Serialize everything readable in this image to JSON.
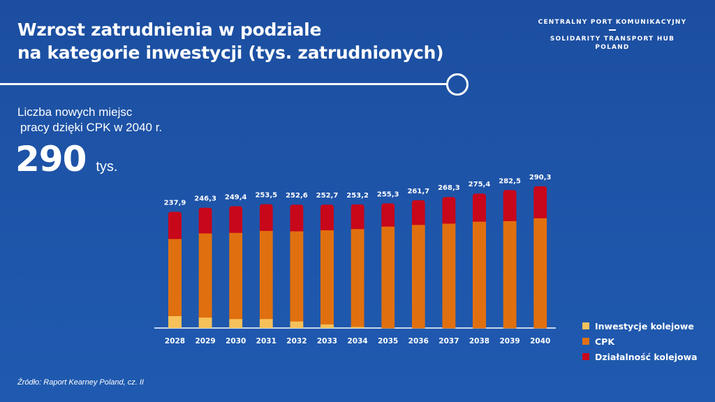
{
  "header": {
    "title_line1": "Wzrost zatrudnienia w podziale",
    "title_line2": "na kategorie inwestycji (tys. zatrudnionych)"
  },
  "logo": {
    "line1": "CENTRALNY PORT KOMUNIKACYJNY",
    "line2": "SOLIDARITY TRANSPORT HUB",
    "line3": "POLAND"
  },
  "kpi": {
    "label_line1": "Liczba nowych miejsc",
    "label_line2": "pracy dzięki CPK w 2040 r.",
    "value": "290",
    "unit": "tys."
  },
  "source": "Źródło: Raport Kearney Poland, cz. II",
  "colors": {
    "inwestycje": "#f6c15a",
    "cpk": "#e0700f",
    "dzialalnosc": "#c8071a"
  },
  "chart_data": {
    "type": "bar",
    "stacked": true,
    "categories": [
      "2028",
      "2029",
      "2030",
      "2031",
      "2032",
      "2033",
      "2034",
      "2035",
      "2036",
      "2037",
      "2038",
      "2039",
      "2040"
    ],
    "totals": [
      237.9,
      246.3,
      249.4,
      253.5,
      252.6,
      252.7,
      253.2,
      255.3,
      261.7,
      268.3,
      275.4,
      282.5,
      290.3
    ],
    "total_labels": [
      "237,9",
      "246,3",
      "249,4",
      "253,5",
      "252,6",
      "252,7",
      "253,2",
      "255,3",
      "261,7",
      "268,3",
      "275,4",
      "282,5",
      "290,3"
    ],
    "series": [
      {
        "name": "Inwestycje kolejowe",
        "color": "#f6c15a",
        "values": [
          25,
          22,
          19,
          19,
          14,
          8,
          3,
          0,
          0,
          0,
          0,
          0,
          0
        ]
      },
      {
        "name": "CPK",
        "color": "#e0700f",
        "values": [
          157.9,
          172.3,
          176.4,
          180.5,
          184.6,
          192.7,
          200.2,
          208.3,
          211.7,
          214.3,
          218.4,
          219.5,
          225.3
        ]
      },
      {
        "name": "Działalność kolejowa",
        "color": "#c8071a",
        "values": [
          55,
          52,
          54,
          54,
          54,
          52,
          50,
          47,
          50,
          54,
          57,
          63,
          65
        ]
      }
    ],
    "legend_position": "bottom-right",
    "grid": false
  }
}
